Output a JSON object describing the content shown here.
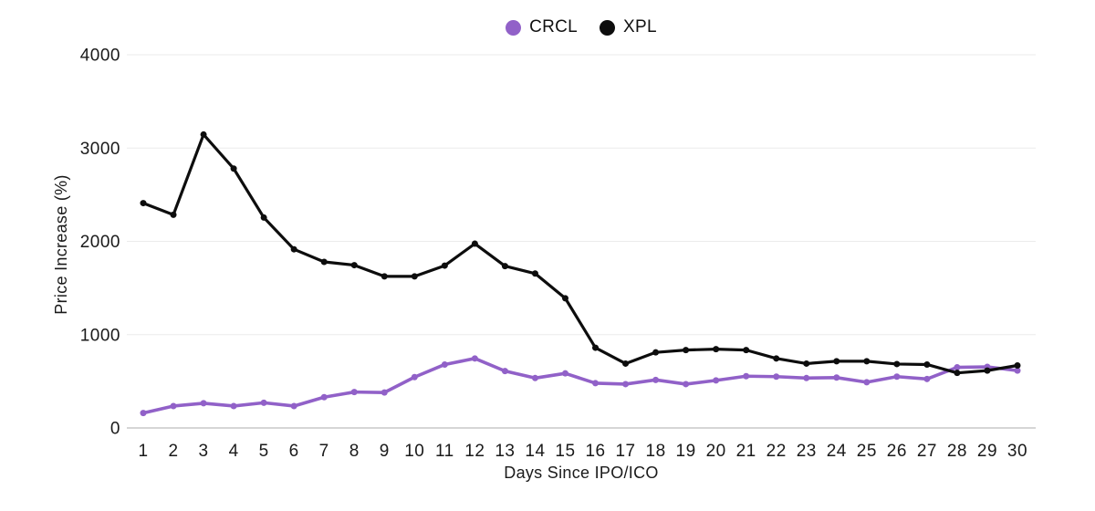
{
  "page": {
    "background": "#ffffff"
  },
  "chart_data": {
    "type": "line",
    "title": "",
    "xlabel": "Days Since IPO/ICO",
    "ylabel": "Price Increase (%)",
    "x": [
      1,
      2,
      3,
      4,
      5,
      6,
      7,
      8,
      9,
      10,
      11,
      12,
      13,
      14,
      15,
      16,
      17,
      18,
      19,
      20,
      21,
      22,
      23,
      24,
      25,
      26,
      27,
      28,
      29,
      30
    ],
    "ylim": [
      0,
      4000
    ],
    "yticks": [
      0,
      1000,
      2000,
      3000,
      4000
    ],
    "grid": "horizontal",
    "legend_position": "top-center",
    "colors": {
      "grid": "#ebebeb",
      "axis_line": "#c9c9c9",
      "text": "#1a1a1a"
    },
    "series": [
      {
        "name": "CRCL",
        "color": "#9161c8",
        "values": [
          160,
          235,
          265,
          235,
          270,
          235,
          330,
          385,
          380,
          545,
          680,
          745,
          610,
          535,
          585,
          480,
          470,
          515,
          470,
          510,
          555,
          550,
          535,
          540,
          490,
          550,
          525,
          650,
          655,
          615
        ]
      },
      {
        "name": "XPL",
        "color": "#0d0d0d",
        "values": [
          2410,
          2285,
          3145,
          2780,
          2255,
          1915,
          1780,
          1745,
          1625,
          1625,
          1740,
          1975,
          1735,
          1655,
          1390,
          860,
          690,
          810,
          835,
          845,
          835,
          745,
          690,
          715,
          715,
          685,
          680,
          590,
          615,
          670
        ]
      }
    ]
  }
}
